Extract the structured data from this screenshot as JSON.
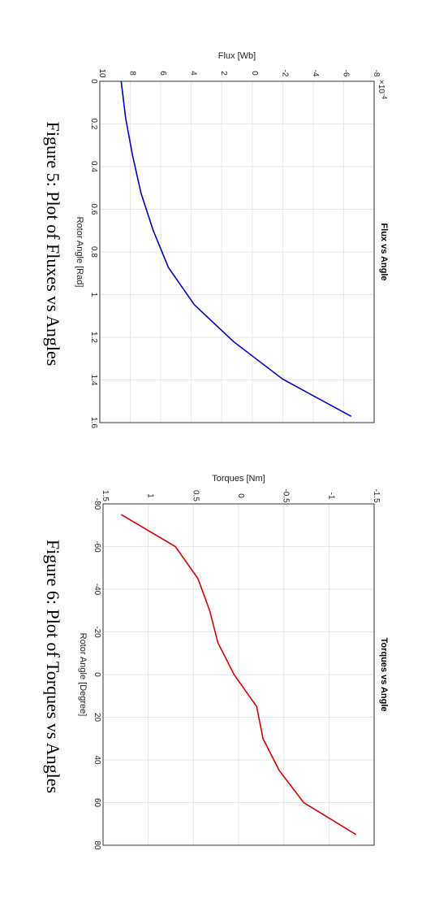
{
  "chart_data": [
    {
      "type": "line",
      "title": "Flux vs Angle",
      "xlabel": "Rotor Angle [Rad]",
      "ylabel": "Flux [Wb]",
      "y_multiplier": "×10",
      "y_multiplier_exp": "-4",
      "caption": "Figure 5: Plot of Fluxes vs Angles",
      "xlim": [
        0,
        1.6
      ],
      "ylim": [
        -8,
        10
      ],
      "xticks": [
        "0",
        "0.2",
        "0.4",
        "0.6",
        "0.8",
        "1",
        "1.2",
        "1.4",
        "1.6"
      ],
      "yticks": [
        "-8",
        "-6",
        "-4",
        "-2",
        "0",
        "2",
        "4",
        "6",
        "8",
        "10"
      ],
      "grid": true,
      "color": "#0000cc",
      "series": [
        {
          "x": [
            0,
            0.1745,
            0.349,
            0.5236,
            0.6981,
            0.8727,
            1.0472,
            1.2217,
            1.3963,
            1.5708
          ],
          "y": [
            8.6,
            8.3,
            7.85,
            7.3,
            6.5,
            5.5,
            3.8,
            1.2,
            -2.0,
            -6.5
          ]
        }
      ]
    },
    {
      "type": "line",
      "title": "Torques vs Angle",
      "xlabel": "Rotor Angle [Degree]",
      "ylabel": "Torques [Nm]",
      "caption": "Figure 6: Plot of Torques vs Angles",
      "xlim": [
        -80,
        80
      ],
      "ylim": [
        -1.5,
        1.5
      ],
      "xticks": [
        "-80",
        "-60",
        "-40",
        "-20",
        "0",
        "20",
        "40",
        "60",
        "80"
      ],
      "yticks": [
        "-1.5",
        "-1",
        "-0.5",
        "0",
        "0.5",
        "1",
        "1.5"
      ],
      "grid": true,
      "color": "#dd0000",
      "series": [
        {
          "x": [
            -75,
            -60,
            -45,
            -30,
            -15,
            0,
            15,
            30,
            45,
            60,
            75
          ],
          "y": [
            1.3,
            0.7,
            0.45,
            0.32,
            0.23,
            0.05,
            -0.2,
            -0.27,
            -0.45,
            -0.72,
            -1.3
          ]
        }
      ]
    }
  ]
}
